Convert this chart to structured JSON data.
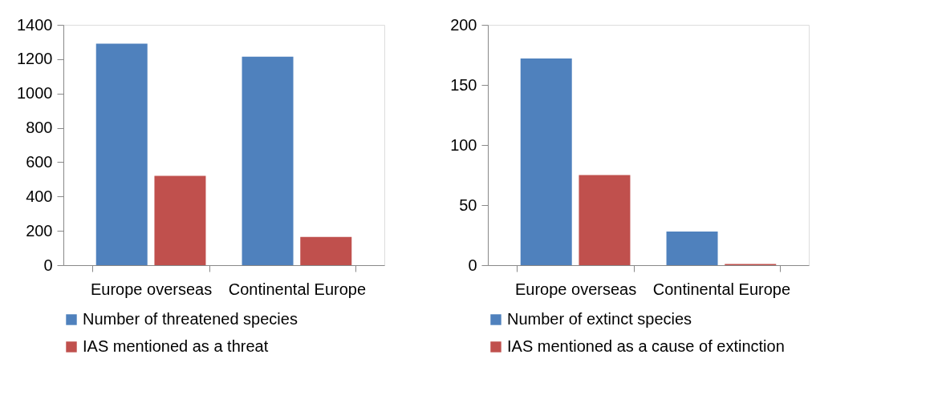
{
  "chart_data": [
    {
      "type": "bar",
      "categories": [
        "Europe overseas",
        "Continental Europe"
      ],
      "series": [
        {
          "name": "Number of threatened species",
          "color": "#4f81bd",
          "values": [
            1290,
            1215
          ]
        },
        {
          "name": "IAS mentioned as a threat",
          "color": "#c0504d",
          "values": [
            520,
            165
          ]
        }
      ],
      "ylim": [
        0,
        1400
      ],
      "yticks": [
        0,
        200,
        400,
        600,
        800,
        1000,
        1200,
        1400
      ],
      "grid": false,
      "legend": "bottom"
    },
    {
      "type": "bar",
      "categories": [
        "Europe overseas",
        "Continental Europe"
      ],
      "series": [
        {
          "name": "Number of extinct species",
          "color": "#4f81bd",
          "values": [
            172,
            28
          ]
        },
        {
          "name": "IAS mentioned as a cause of extinction",
          "color": "#c0504d",
          "values": [
            75,
            1
          ]
        }
      ],
      "ylim": [
        0,
        200
      ],
      "yticks": [
        0,
        50,
        100,
        150,
        200
      ],
      "grid": false,
      "legend": "bottom"
    }
  ]
}
